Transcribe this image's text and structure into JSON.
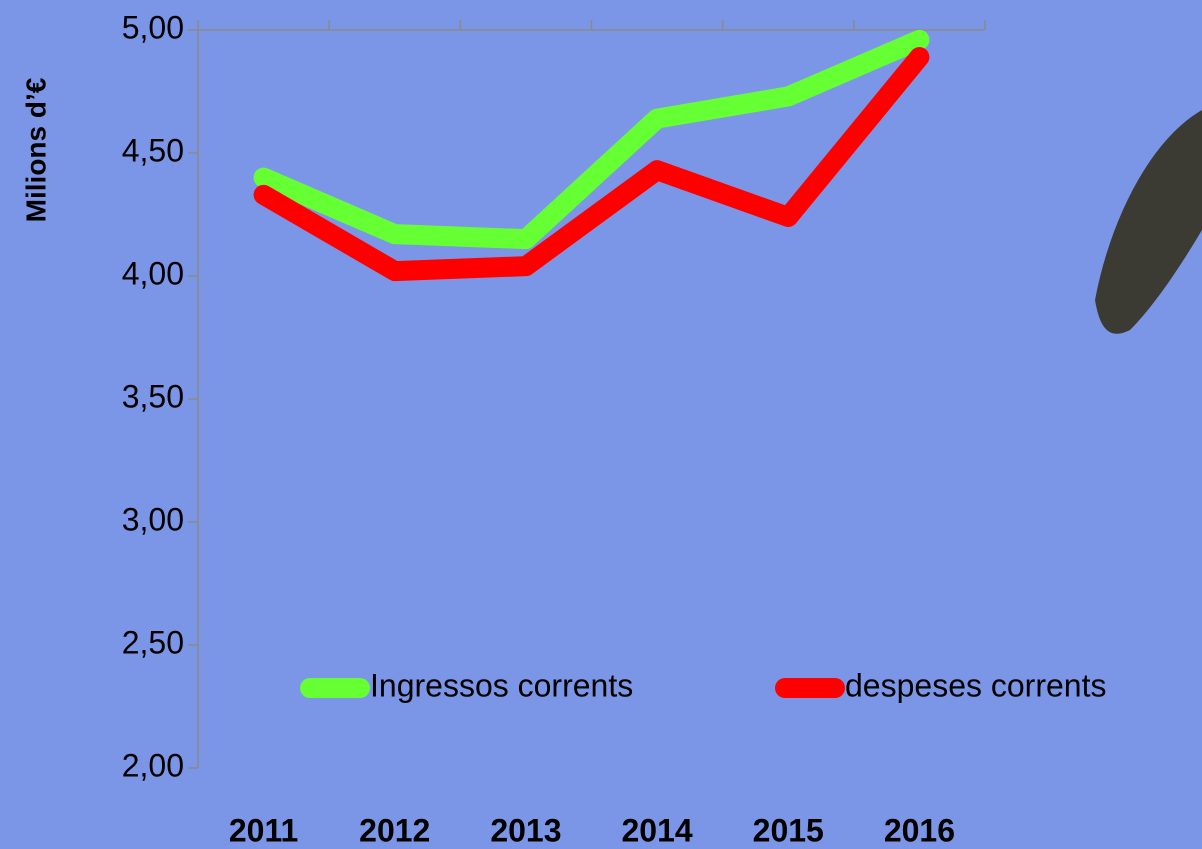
{
  "chart_data": {
    "type": "line",
    "y_label": "Milions d’€",
    "categories": [
      "2011",
      "2012",
      "2013",
      "2014",
      "2015",
      "2016"
    ],
    "series": [
      {
        "name": "Ingressos corrents",
        "color": "#66ff33",
        "values": [
          4.4,
          4.17,
          4.15,
          4.64,
          4.73,
          4.96
        ]
      },
      {
        "name": "despeses corrents",
        "color": "#ff0000",
        "values": [
          4.33,
          4.02,
          4.04,
          4.43,
          4.24,
          4.89
        ]
      }
    ],
    "ylim": [
      2,
      5
    ],
    "yticks": [
      {
        "value": 2,
        "label": "2,00"
      },
      {
        "value": 2.5,
        "label": "2,50"
      },
      {
        "value": 3,
        "label": "3,00"
      },
      {
        "value": 3.5,
        "label": "3,50"
      },
      {
        "value": 4,
        "label": "4,00"
      },
      {
        "value": 4.5,
        "label": "4,50"
      },
      {
        "value": 5,
        "label": "5,00"
      }
    ],
    "legend": "bottom"
  }
}
